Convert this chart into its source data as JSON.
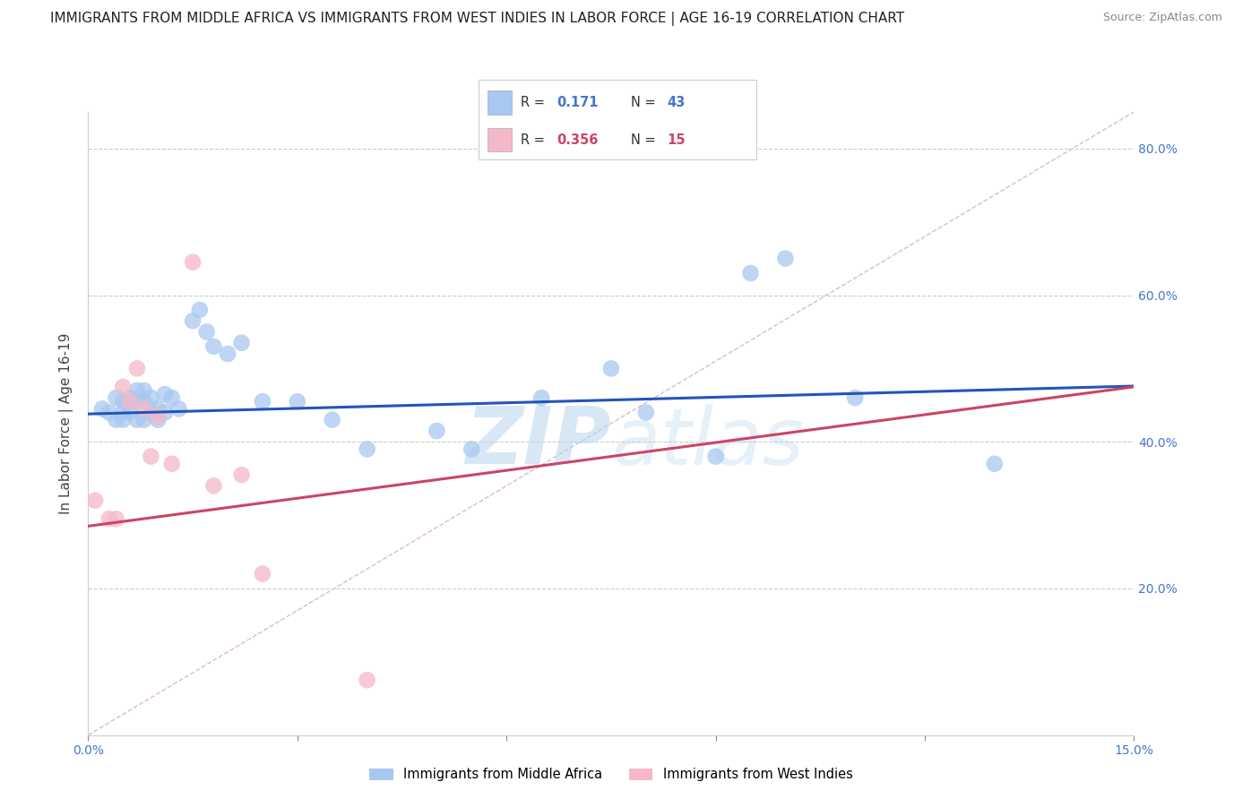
{
  "title": "IMMIGRANTS FROM MIDDLE AFRICA VS IMMIGRANTS FROM WEST INDIES IN LABOR FORCE | AGE 16-19 CORRELATION CHART",
  "source": "Source: ZipAtlas.com",
  "ylabel": "In Labor Force | Age 16-19",
  "xlim": [
    0.0,
    0.15
  ],
  "ylim": [
    0.0,
    0.85
  ],
  "blue_R": "0.171",
  "blue_N": "43",
  "pink_R": "0.356",
  "pink_N": "15",
  "blue_scatter_x": [
    0.002,
    0.003,
    0.004,
    0.004,
    0.005,
    0.005,
    0.005,
    0.006,
    0.006,
    0.007,
    0.007,
    0.007,
    0.008,
    0.008,
    0.008,
    0.009,
    0.009,
    0.01,
    0.01,
    0.011,
    0.011,
    0.012,
    0.013,
    0.015,
    0.016,
    0.017,
    0.018,
    0.02,
    0.022,
    0.025,
    0.03,
    0.035,
    0.04,
    0.05,
    0.055,
    0.065,
    0.075,
    0.08,
    0.09,
    0.095,
    0.1,
    0.11,
    0.13
  ],
  "blue_scatter_y": [
    0.445,
    0.44,
    0.43,
    0.46,
    0.44,
    0.455,
    0.43,
    0.44,
    0.46,
    0.455,
    0.47,
    0.43,
    0.47,
    0.455,
    0.43,
    0.44,
    0.46,
    0.445,
    0.43,
    0.44,
    0.465,
    0.46,
    0.445,
    0.565,
    0.58,
    0.55,
    0.53,
    0.52,
    0.535,
    0.455,
    0.455,
    0.43,
    0.39,
    0.415,
    0.39,
    0.46,
    0.5,
    0.44,
    0.38,
    0.63,
    0.65,
    0.46,
    0.37
  ],
  "pink_scatter_x": [
    0.001,
    0.003,
    0.004,
    0.005,
    0.006,
    0.007,
    0.008,
    0.009,
    0.01,
    0.012,
    0.015,
    0.018,
    0.022,
    0.025,
    0.04
  ],
  "pink_scatter_y": [
    0.32,
    0.295,
    0.295,
    0.475,
    0.455,
    0.5,
    0.445,
    0.38,
    0.435,
    0.37,
    0.645,
    0.34,
    0.355,
    0.22,
    0.075
  ],
  "blue_line_x": [
    0.0,
    0.15
  ],
  "blue_line_y": [
    0.438,
    0.476
  ],
  "pink_line_x": [
    0.0,
    0.15
  ],
  "pink_line_y": [
    0.285,
    0.475
  ],
  "diagonal_line_x": [
    0.0,
    0.15
  ],
  "diagonal_line_y": [
    0.0,
    0.85
  ],
  "blue_color": "#a8c8f0",
  "pink_color": "#f5b8c8",
  "blue_line_color": "#2255bb",
  "pink_line_color": "#cc4466",
  "diagonal_color": "#ddbbcc",
  "watermark_color": "#b8d4f0",
  "legend_label_blue": "Immigrants from Middle Africa",
  "legend_label_pink": "Immigrants from West Indies",
  "background_color": "#ffffff",
  "grid_color": "#cccccc",
  "tick_color": "#4477cc",
  "y_ticks": [
    0.0,
    0.2,
    0.4,
    0.6,
    0.8
  ],
  "x_ticks": [
    0.0,
    0.03,
    0.06,
    0.09,
    0.12,
    0.15
  ]
}
